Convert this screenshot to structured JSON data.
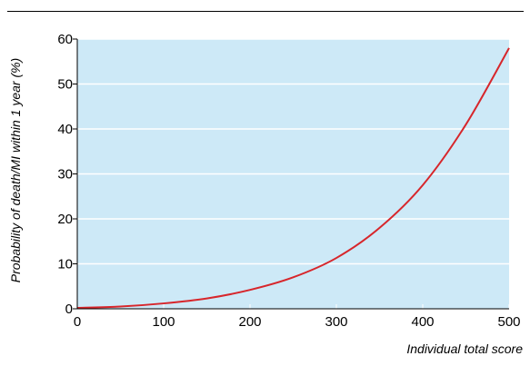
{
  "chart_data": {
    "type": "line",
    "title": "",
    "xlabel": "Individual total score",
    "ylabel": "Probability of death/MI within 1 year (%)",
    "xlim": [
      0,
      500
    ],
    "ylim": [
      0,
      60
    ],
    "x_ticks": [
      0,
      100,
      200,
      300,
      400,
      500
    ],
    "y_ticks": [
      0,
      10,
      20,
      30,
      40,
      50,
      60
    ],
    "grid": "horizontal",
    "legend": "none",
    "colors": {
      "plot_background": "#cde9f7",
      "line": "#d7262b",
      "grid": "#ffffff"
    },
    "series": [
      {
        "x": [
          0,
          50,
          100,
          150,
          200,
          250,
          300,
          350,
          400,
          450,
          500
        ],
        "y": [
          0.2,
          0.5,
          1.2,
          2.3,
          4.2,
          7.0,
          11.3,
          18.0,
          27.5,
          41.0,
          58.0
        ]
      }
    ]
  }
}
